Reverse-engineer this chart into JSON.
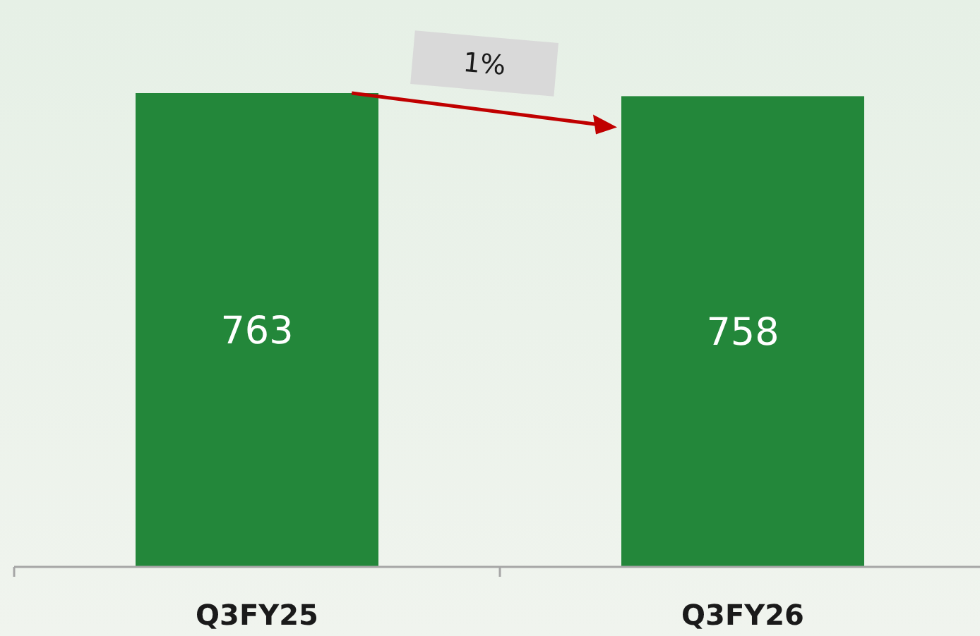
{
  "chart_data": {
    "type": "bar",
    "categories": [
      "Q3FY25",
      "Q3FY26"
    ],
    "values": [
      763,
      758
    ],
    "color": "#23873a",
    "data_labels": true,
    "annotations": [
      "1%"
    ]
  }
}
